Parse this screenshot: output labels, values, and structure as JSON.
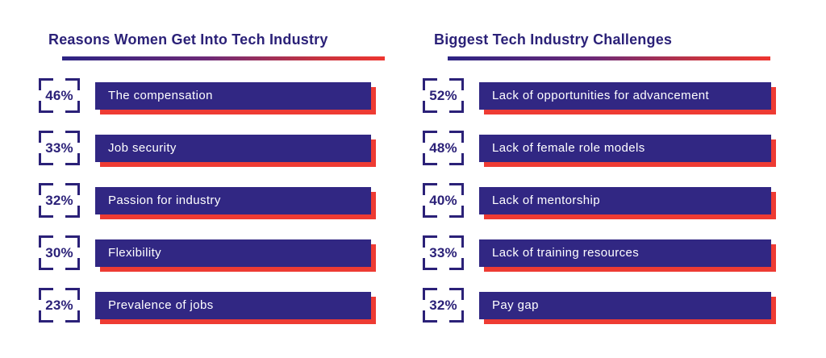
{
  "colors": {
    "bar_indigo": "#312783",
    "shadow_red": "#ee3b33",
    "title_indigo": "#2b2178",
    "bar_text": "#ffffff",
    "background": "#ffffff",
    "underline_gradient_start": "#2c2484",
    "underline_gradient_end": "#ee3530"
  },
  "columns": [
    {
      "title": "Reasons Women Get Into Tech Industry",
      "rows": [
        {
          "pct": "46%",
          "label": "The compensation"
        },
        {
          "pct": "33%",
          "label": "Job security"
        },
        {
          "pct": "32%",
          "label": "Passion for industry"
        },
        {
          "pct": "30%",
          "label": "Flexibility"
        },
        {
          "pct": "23%",
          "label": "Prevalence of jobs"
        }
      ]
    },
    {
      "title": "Biggest Tech Industry Challenges",
      "rows": [
        {
          "pct": "52%",
          "label": "Lack of opportunities for advancement"
        },
        {
          "pct": "48%",
          "label": "Lack of female role models"
        },
        {
          "pct": "40%",
          "label": "Lack of mentorship"
        },
        {
          "pct": "33%",
          "label": "Lack of training resources"
        },
        {
          "pct": "32%",
          "label": "Pay gap"
        }
      ]
    }
  ],
  "chart_data": [
    {
      "type": "bar",
      "title": "Reasons Women Get Into Tech Industry",
      "categories": [
        "The compensation",
        "Job security",
        "Passion for industry",
        "Flexibility",
        "Prevalence of jobs"
      ],
      "values": [
        46,
        33,
        32,
        30,
        23
      ],
      "unit": "%",
      "orientation": "horizontal",
      "layout": "decorative constant-width bars; percentage shown in corner-bracket badge left of each bar",
      "legend": "none",
      "grid": false
    },
    {
      "type": "bar",
      "title": "Biggest Tech Industry Challenges",
      "categories": [
        "Lack of opportunities for advancement",
        "Lack of female role models",
        "Lack of mentorship",
        "Lack of training resources",
        "Pay gap"
      ],
      "values": [
        52,
        48,
        40,
        33,
        32
      ],
      "unit": "%",
      "orientation": "horizontal",
      "layout": "decorative constant-width bars; percentage shown in corner-bracket badge left of each bar",
      "legend": "none",
      "grid": false
    }
  ]
}
